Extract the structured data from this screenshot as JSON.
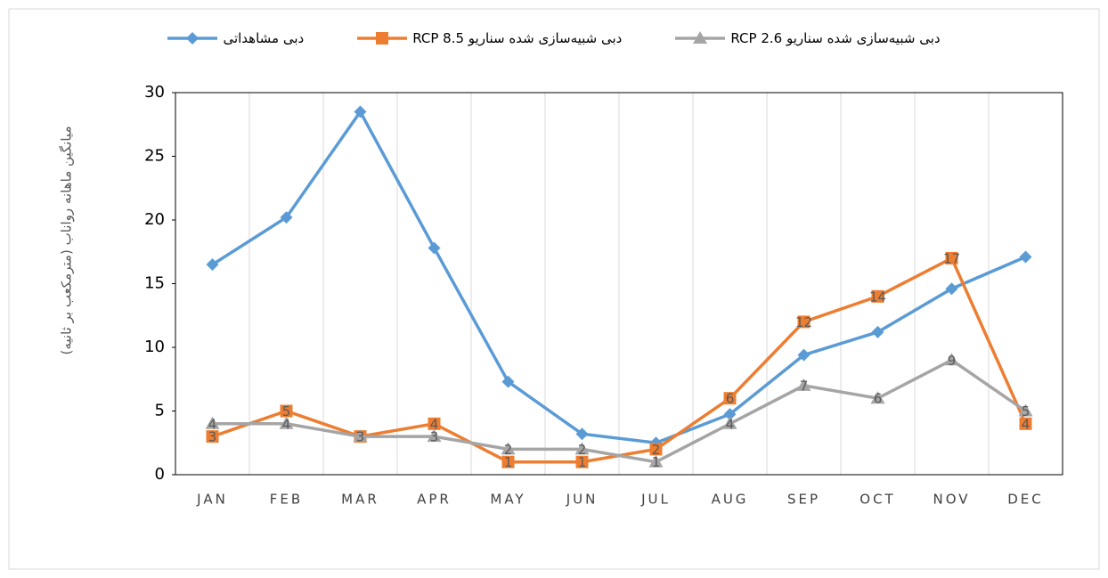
{
  "chart_data": {
    "type": "line",
    "ylabel": "میانگین ماهانه رواناب (مترمکعب بر ثانیه)",
    "categories": [
      "JAN",
      "FEB",
      "MAR",
      "APR",
      "MAY",
      "JUN",
      "JUL",
      "AUG",
      "SEP",
      "OCT",
      "NOV",
      "DEC"
    ],
    "series": [
      {
        "name": "دبی مشاهداتی",
        "color": "#5b9bd5",
        "marker": "diamond",
        "data_labels": false,
        "values": [
          16.5,
          20.2,
          28.5,
          17.8,
          7.3,
          3.2,
          2.5,
          4.75,
          9.4,
          11.2,
          14.6,
          17.1
        ]
      },
      {
        "name": "دبی شبیه‌سازی شده سناریو RCP 8.5",
        "color": "#ed7d31",
        "marker": "square",
        "data_labels": true,
        "values": [
          3,
          5,
          3,
          4,
          1,
          1,
          2,
          6,
          12,
          14,
          17,
          4
        ]
      },
      {
        "name": "دبی شبیه‌سازی شده سناریو RCP 2.6",
        "color": "#a5a5a5",
        "marker": "triangle",
        "data_labels": true,
        "values": [
          4,
          4,
          3,
          3,
          2,
          2,
          1,
          4,
          7,
          6,
          9,
          5
        ]
      }
    ],
    "ylim": [
      0,
      30
    ],
    "yticks": [
      0,
      5,
      10,
      15,
      20,
      25,
      30
    ],
    "grid": "x",
    "legend": "top"
  }
}
